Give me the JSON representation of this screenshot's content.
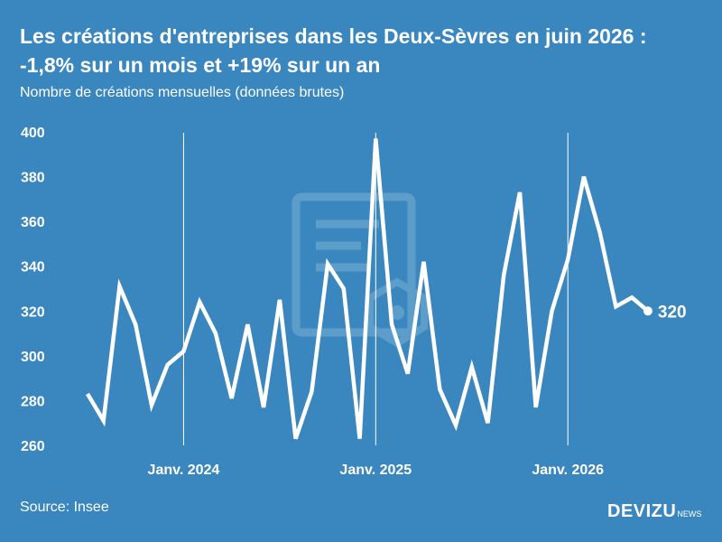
{
  "header": {
    "title": "Les créations d'entreprises dans les Deux-Sèvres en juin 2026 : -1,8% sur un mois et +19% sur un an",
    "subtitle": "Nombre de créations mensuelles (données brutes)"
  },
  "footer": {
    "source": "Source: Insee",
    "brand": "DEVIZU",
    "brand_suffix": "NEWS"
  },
  "colors": {
    "background": "#3a87bf",
    "line": "#ffffff",
    "watermark": "#5d9dca"
  },
  "chart_data": {
    "type": "line",
    "title": "Les créations d'entreprises dans les Deux-Sèvres en juin 2026 : -1,8% sur un mois et +19% sur un an",
    "subtitle": "Nombre de créations mensuelles (données brutes)",
    "xlabel": "",
    "ylabel": "",
    "ylim": [
      260,
      400
    ],
    "yticks": [
      260,
      280,
      300,
      320,
      340,
      360,
      380,
      400
    ],
    "grid": "vertical lines at January of each year",
    "legend": "none",
    "x_start": "2023-07",
    "x_end": "2026-06",
    "x_ticks": [
      {
        "month": "2024-01",
        "label": "Janv. 2024"
      },
      {
        "month": "2025-01",
        "label": "Janv. 2025"
      },
      {
        "month": "2026-01",
        "label": "Janv. 2026"
      }
    ],
    "series": [
      {
        "x": [
          "2023-07",
          "2023-08",
          "2023-09",
          "2023-10",
          "2023-11",
          "2023-12",
          "2024-01",
          "2024-02",
          "2024-03",
          "2024-04",
          "2024-05",
          "2024-06",
          "2024-07",
          "2024-08",
          "2024-09",
          "2024-10",
          "2024-11",
          "2024-12",
          "2025-01",
          "2025-02",
          "2025-03",
          "2025-04",
          "2025-05",
          "2025-06",
          "2025-07",
          "2025-08",
          "2025-09",
          "2025-10",
          "2025-11",
          "2025-12",
          "2026-01",
          "2026-02",
          "2026-03",
          "2026-04",
          "2026-05",
          "2026-06"
        ],
        "values": [
          283,
          271,
          331,
          314,
          278,
          296,
          302,
          324,
          310,
          281,
          314,
          277,
          325,
          263,
          284,
          341,
          330,
          263,
          397,
          314,
          292,
          342,
          285,
          269,
          295,
          270,
          336,
          373,
          277,
          320,
          343,
          380,
          355,
          322,
          326,
          320
        ]
      }
    ],
    "end_label": "320"
  }
}
